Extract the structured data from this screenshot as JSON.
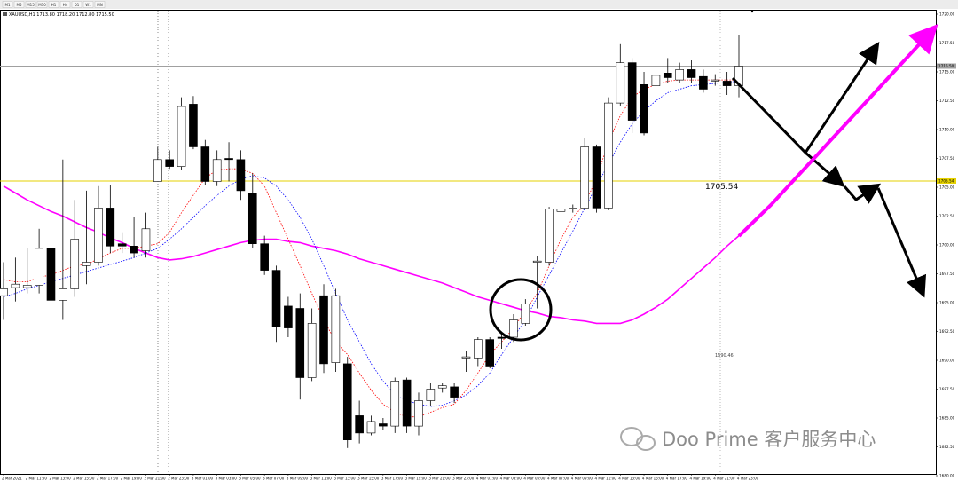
{
  "toolbar": {
    "buttons": [
      "M1",
      "M5",
      "M15",
      "M30",
      "H1",
      "H4",
      "D1",
      "W1",
      "MN"
    ]
  },
  "watermark": "Doo Prime 客户服务中心",
  "chart_data": {
    "type": "candlestick",
    "title": "XAUUSD,H1  1713.80 1718.20 1712.80 1715.50",
    "categories": [
      "2 Mar 2021",
      null,
      "2 Mar 11:00",
      null,
      "2 Mar 13:00",
      null,
      "2 Mar 15:00",
      null,
      "2 Mar 17:00",
      null,
      "2 Mar 19:00",
      null,
      "2 Mar 21:00",
      null,
      "2 Mar 23:00",
      null,
      "3 Mar 01:00",
      null,
      "3 Mar 03:00",
      null,
      "3 Mar 05:00",
      null,
      "3 Mar 07:00",
      null,
      "3 Mar 09:00",
      null,
      "3 Mar 11:00",
      null,
      "3 Mar 13:00",
      null,
      "3 Mar 15:00",
      null,
      "3 Mar 17:00",
      null,
      "3 Mar 19:00",
      null,
      "3 Mar 21:00",
      null,
      "3 Mar 23:00",
      null,
      "4 Mar 01:00",
      null,
      "4 Mar 03:00",
      null,
      "4 Mar 05:00",
      null,
      "4 Mar 07:00",
      null,
      "4 Mar 09:00",
      null,
      "4 Mar 11:00",
      null,
      "4 Mar 13:00",
      null,
      "4 Mar 15:00",
      null,
      "4 Mar 17:00",
      null,
      "4 Mar 19:00",
      null,
      "4 Mar 21:00",
      null,
      "4 Mar 23:00"
    ],
    "open": [
      1695.6,
      1696.3,
      1696.3,
      1696.5,
      1699.7,
      1695.2,
      1696.2,
      1698.2,
      1698.5,
      1703.2,
      1700.1,
      1699.9,
      1699.5,
      1705.5,
      1707.4,
      1706.8,
      1712.2,
      1708.5,
      1705.5,
      1707.5,
      1707.4,
      1704.5,
      1700.1,
      1697.8,
      1694.7,
      1694.5,
      1688.5,
      1695.6,
      1689.8,
      1689.7,
      1685.2,
      1683.7,
      1684.5,
      1684.3,
      1688.3,
      1684.3,
      1686.5,
      1687.6,
      1687.7,
      1690.2,
      1690.2,
      1691.8,
      1692.0,
      1692.0,
      1693.2,
      1698.5,
      1698.5,
      1702.9,
      1703.1,
      1703.2,
      1708.5,
      1703.2,
      1712.3,
      1715.8,
      1713.9,
      1713.8,
      1714.9,
      1714.3,
      1715.2,
      1714.6,
      1714.2,
      1714.2,
      1713.8
    ],
    "high": [
      1698.5,
      1698.9,
      1699.7,
      1701.4,
      1701.6,
      1707.4,
      1703.9,
      1704.7,
      1705.1,
      1705.2,
      1701.1,
      1702.4,
      1702.8,
      1708.5,
      1708.2,
      1712.8,
      1712.9,
      1709.1,
      1708.2,
      1708.9,
      1708.2,
      1706.2,
      1700.8,
      1698.2,
      1695.5,
      1695.8,
      1694.5,
      1696.6,
      1696.2,
      1690.3,
      1686.5,
      1685.2,
      1685.0,
      1688.5,
      1688.5,
      1687.2,
      1688.0,
      1688.0,
      1688.0,
      1690.8,
      1692.0,
      1692.0,
      1692.5,
      1694.0,
      1695.3,
      1699.0,
      1703.3,
      1703.3,
      1703.5,
      1709.3,
      1708.7,
      1712.8,
      1717.4,
      1716.2,
      1715.0,
      1716.6,
      1716.2,
      1715.8,
      1716.0,
      1715.2,
      1714.8,
      1715.0,
      1718.2
    ],
    "low": [
      1693.5,
      1695.1,
      1695.8,
      1695.8,
      1688.0,
      1693.5,
      1695.5,
      1696.6,
      1698.2,
      1699.3,
      1699.3,
      1698.9,
      1698.9,
      1705.5,
      1706.6,
      1706.5,
      1708.3,
      1705.2,
      1705.1,
      1705.5,
      1703.9,
      1699.7,
      1697.4,
      1691.6,
      1692.0,
      1686.6,
      1688.2,
      1688.9,
      1689.0,
      1682.4,
      1682.8,
      1683.5,
      1684.0,
      1683.7,
      1683.7,
      1683.5,
      1686.0,
      1687.2,
      1686.3,
      1689.0,
      1689.5,
      1689.3,
      1691.0,
      1691.6,
      1693.0,
      1694.5,
      1698.2,
      1702.5,
      1702.8,
      1703.0,
      1702.8,
      1703.0,
      1712.0,
      1709.7,
      1709.5,
      1713.5,
      1714.0,
      1714.0,
      1714.0,
      1713.2,
      1713.8,
      1713.0,
      1712.8
    ],
    "close": [
      1696.2,
      1696.6,
      1696.5,
      1699.7,
      1695.2,
      1696.2,
      1700.5,
      1698.5,
      1703.2,
      1699.9,
      1699.9,
      1699.3,
      1701.4,
      1707.4,
      1706.8,
      1712.0,
      1708.5,
      1705.5,
      1707.4,
      1707.4,
      1704.7,
      1700.1,
      1697.8,
      1692.9,
      1692.8,
      1688.5,
      1693.2,
      1689.7,
      1695.6,
      1683.1,
      1683.7,
      1684.7,
      1684.3,
      1688.2,
      1684.3,
      1686.5,
      1687.5,
      1687.8,
      1686.8,
      1690.3,
      1691.8,
      1689.5,
      1691.9,
      1693.5,
      1694.9,
      1698.6,
      1703.1,
      1703.1,
      1703.2,
      1708.5,
      1703.2,
      1712.3,
      1715.8,
      1710.8,
      1709.7,
      1714.7,
      1714.5,
      1715.2,
      1714.5,
      1713.5,
      1714.3,
      1713.8,
      1715.5
    ],
    "up_color": "#ffffff",
    "down_color": "#000000",
    "overlays": [
      {
        "color": "#ff00ff",
        "style": "solid",
        "values": [
          1705.1,
          1704.5,
          1703.9,
          1703.4,
          1702.9,
          1702.5,
          1702.0,
          1701.5,
          1701.1,
          1700.6,
          1700.2,
          1699.7,
          1699.3,
          1698.9,
          1698.7,
          1698.8,
          1699.0,
          1699.3,
          1699.6,
          1699.9,
          1700.2,
          1700.4,
          1700.5,
          1700.5,
          1700.3,
          1700.2,
          1699.9,
          1699.7,
          1699.5,
          1699.2,
          1698.8,
          1698.5,
          1698.2,
          1697.9,
          1697.6,
          1697.3,
          1697.0,
          1696.7,
          1696.3,
          1695.9,
          1695.5,
          1695.2,
          1694.9,
          1694.6,
          1694.3,
          1694.1,
          1693.8,
          1693.7,
          1693.5,
          1693.4,
          1693.2,
          1693.2,
          1693.2,
          1693.5,
          1694.0,
          1694.6,
          1695.3,
          1696.2,
          1697.1,
          1698.0,
          1698.9,
          1699.9,
          1700.8
        ]
      },
      {
        "color": "#ff0000",
        "style": "dotted",
        "values": [
          1697.0,
          1696.8,
          1696.8,
          1697.2,
          1697.4,
          1697.8,
          1698.2,
          1698.3,
          1698.8,
          1699.3,
          1699.7,
          1699.7,
          1699.9,
          1700.1,
          1701.1,
          1702.8,
          1704.3,
          1705.8,
          1706.5,
          1706.6,
          1706.6,
          1706.2,
          1705.1,
          1702.8,
          1700.5,
          1698.2,
          1695.8,
          1693.5,
          1691.6,
          1690.5,
          1688.9,
          1687.4,
          1686.2,
          1685.5,
          1685.1,
          1685.1,
          1685.5,
          1685.9,
          1686.2,
          1687.4,
          1688.9,
          1690.5,
          1691.6,
          1692.8,
          1694.3,
          1695.8,
          1698.2,
          1700.5,
          1702.4,
          1703.5,
          1705.8,
          1708.9,
          1711.2,
          1712.8,
          1713.5,
          1713.9,
          1714.2,
          1714.3,
          1714.3,
          1714.3,
          1714.3,
          1714.3,
          1714.3
        ]
      },
      {
        "color": "#0000ff",
        "style": "dotted",
        "values": [
          1695.5,
          1695.8,
          1696.2,
          1696.5,
          1696.8,
          1697.1,
          1697.4,
          1697.7,
          1698.0,
          1698.3,
          1698.6,
          1698.9,
          1699.3,
          1699.7,
          1700.5,
          1701.4,
          1702.4,
          1703.4,
          1704.3,
          1705.1,
          1705.7,
          1706.0,
          1705.8,
          1705.1,
          1703.9,
          1702.4,
          1700.5,
          1698.2,
          1695.8,
          1693.5,
          1691.6,
          1689.7,
          1688.2,
          1687.0,
          1686.5,
          1686.2,
          1686.0,
          1686.1,
          1686.5,
          1687.0,
          1687.8,
          1688.9,
          1690.5,
          1692.0,
          1693.5,
          1695.5,
          1697.4,
          1699.3,
          1701.2,
          1703.2,
          1705.1,
          1707.0,
          1708.9,
          1710.5,
          1711.6,
          1712.5,
          1713.2,
          1713.5,
          1713.8,
          1713.9,
          1714.0,
          1714.1,
          1714.2
        ]
      }
    ],
    "hlines": [
      {
        "value": 1705.54,
        "label": "1705.54",
        "color": "#e6d200"
      },
      {
        "value": 1715.5,
        "label": "1715.50",
        "color": "#a0a0a0"
      }
    ],
    "annotations": [
      "1690.46"
    ],
    "ylim": [
      1680,
      1720
    ],
    "yticks": [
      {
        "value": 1680,
        "label": "1680.00"
      },
      {
        "value": 1682.5,
        "label": "1682.50"
      },
      {
        "value": 1685,
        "label": "1685.00"
      },
      {
        "value": 1687.5,
        "label": "1687.50"
      },
      {
        "value": 1690,
        "label": "1690.00"
      },
      {
        "value": 1692.5,
        "label": "1692.50"
      },
      {
        "value": 1695,
        "label": "1695.00"
      },
      {
        "value": 1697.5,
        "label": "1697.50"
      },
      {
        "value": 1700,
        "label": "1700.00"
      },
      {
        "value": 1702.5,
        "label": "1702.50"
      },
      {
        "value": 1705,
        "label": "1705.00"
      },
      {
        "value": 1707.5,
        "label": "1707.50"
      },
      {
        "value": 1710,
        "label": "1710.00"
      },
      {
        "value": 1712.5,
        "label": "1712.50"
      },
      {
        "value": 1715,
        "label": "1715.00"
      },
      {
        "value": 1717.5,
        "label": "1717.50"
      },
      {
        "value": 1720,
        "label": "1720.00"
      }
    ],
    "grid": false
  }
}
